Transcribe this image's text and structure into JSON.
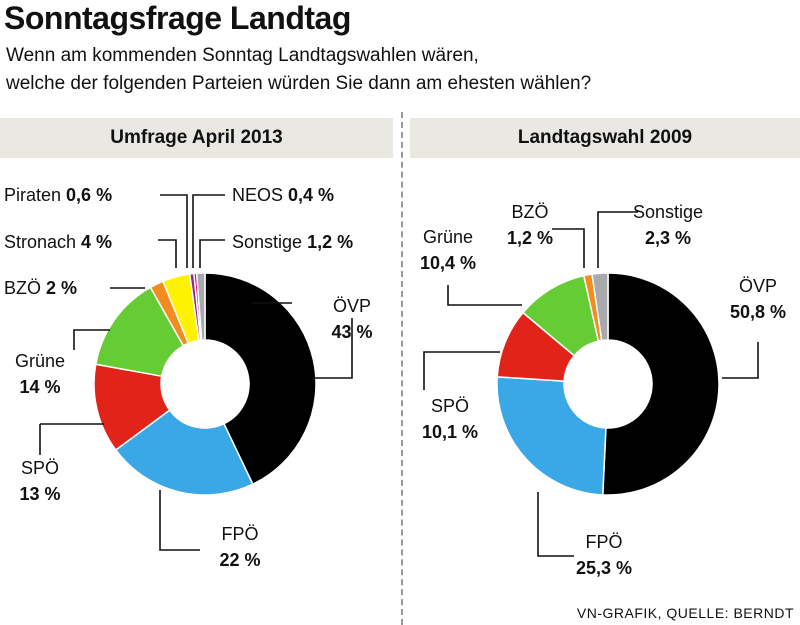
{
  "title": "Sonntagsfrage Landtag",
  "subtitle_line1": "Wenn am kommenden Sonntag Landtagswahlen wären,",
  "subtitle_line2": "welche der folgenden Parteien würden Sie dann am ehesten wählen?",
  "source": "VN-GRAFIK, QUELLE: BERNDT",
  "chart_data": [
    {
      "type": "pie",
      "title": "Umfrage April 2013",
      "slices": [
        {
          "name": "ÖVP",
          "value": 43,
          "label": "43 %",
          "color": "#000000"
        },
        {
          "name": "FPÖ",
          "value": 22,
          "label": "22 %",
          "color": "#3aa8e6"
        },
        {
          "name": "SPÖ",
          "value": 13,
          "label": "13 %",
          "color": "#e2231a"
        },
        {
          "name": "Grüne",
          "value": 14,
          "label": "14 %",
          "color": "#66cc33"
        },
        {
          "name": "BZÖ",
          "value": 2,
          "label": "2 %",
          "color": "#f28c1e"
        },
        {
          "name": "Stronach",
          "value": 4,
          "label": "4 %",
          "color": "#fff200"
        },
        {
          "name": "Piraten",
          "value": 0.6,
          "label": "0,6 %",
          "color": "#8a2b8a"
        },
        {
          "name": "NEOS",
          "value": 0.4,
          "label": "0,4 %",
          "color": "#e6007e"
        },
        {
          "name": "Sonstige",
          "value": 1.2,
          "label": "1,2 %",
          "color": "#a7a9ac"
        }
      ]
    },
    {
      "type": "pie",
      "title": "Landtagswahl 2009",
      "slices": [
        {
          "name": "ÖVP",
          "value": 50.8,
          "label": "50,8 %",
          "color": "#000000"
        },
        {
          "name": "FPÖ",
          "value": 25.3,
          "label": "25,3 %",
          "color": "#3aa8e6"
        },
        {
          "name": "SPÖ",
          "value": 10.1,
          "label": "10,1 %",
          "color": "#e2231a"
        },
        {
          "name": "Grüne",
          "value": 10.4,
          "label": "10,4 %",
          "color": "#66cc33"
        },
        {
          "name": "BZÖ",
          "value": 1.2,
          "label": "1,2 %",
          "color": "#f28c1e"
        },
        {
          "name": "Sonstige",
          "value": 2.3,
          "label": "2,3 %",
          "color": "#a7a9ac"
        }
      ]
    }
  ]
}
